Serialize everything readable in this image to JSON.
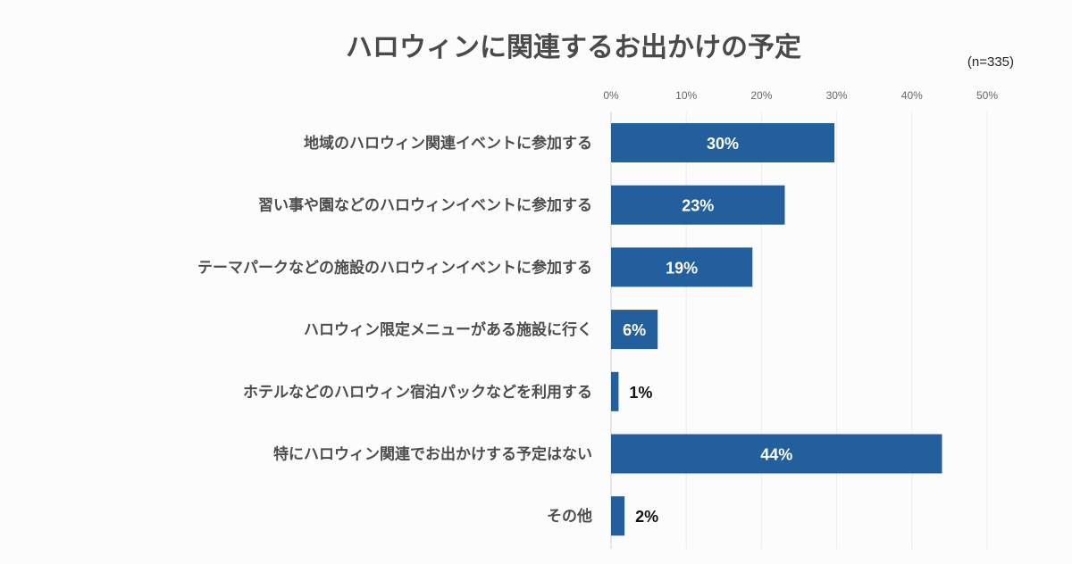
{
  "chart_data": {
    "type": "bar",
    "orientation": "horizontal",
    "title": "ハロウィンに関連するお出かけの予定",
    "note": "(n=335)",
    "xlim": [
      0,
      50
    ],
    "xtick_step": 10,
    "xtick_labels": [
      "0%",
      "10%",
      "20%",
      "30%",
      "40%",
      "50%"
    ],
    "grid": true,
    "bar_color": "#235f9d",
    "categories": [
      "地域のハロウィン関連イベントに参加する",
      "習い事や園などのハロウィンイベントに参加する",
      "テーマパークなどの施設のハロウィンイベントに参加する",
      "ハロウィン限定メニューがある施設に行く",
      "ホテルなどのハロウィン宿泊パックなどを利用する",
      "特にハロウィン関連でお出かけする予定はない",
      "その他"
    ],
    "values": [
      29.7,
      23.1,
      18.8,
      6.2,
      1.0,
      44.0,
      1.8
    ],
    "value_labels": [
      "30%",
      "23%",
      "19%",
      "6%",
      "1%",
      "44%",
      "2%"
    ],
    "value_label_inside": [
      true,
      true,
      true,
      true,
      false,
      true,
      false
    ]
  }
}
